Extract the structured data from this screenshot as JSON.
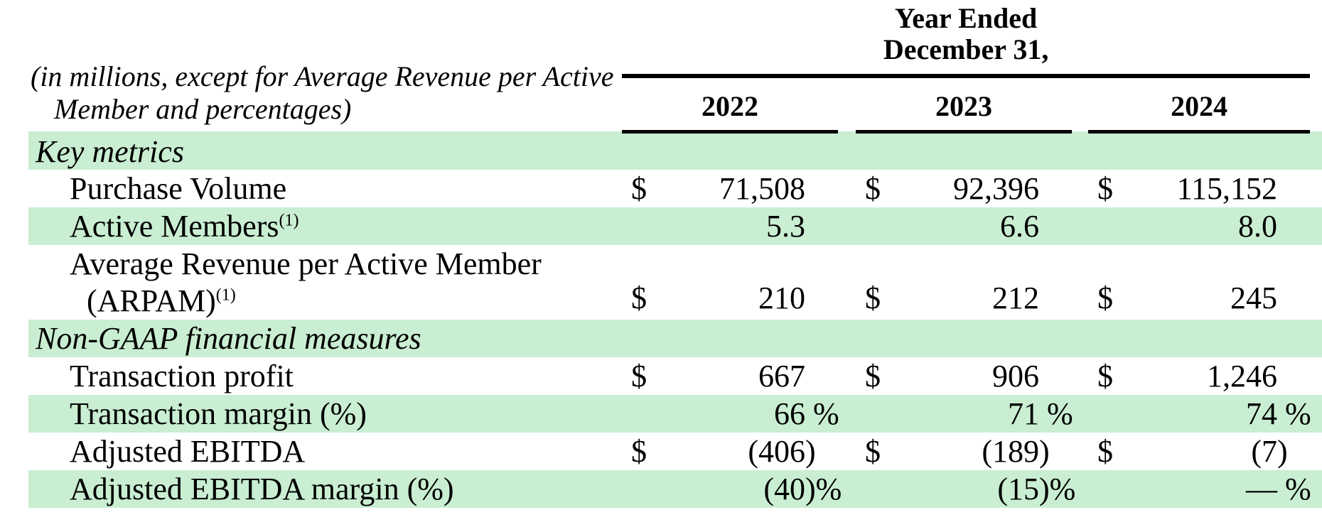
{
  "colors": {
    "row_shade_green": "#c9eed2",
    "rule_black": "#000000"
  },
  "note": "(in millions, except for Average Revenue per Active Member and percentages)",
  "header": {
    "period_line1": "Year Ended",
    "period_line2": "December 31,",
    "years": [
      "2022",
      "2023",
      "2024"
    ]
  },
  "rows": [
    {
      "type": "section",
      "label": "Key metrics"
    },
    {
      "type": "data",
      "label": "Purchase Volume",
      "sup": "",
      "values": [
        {
          "cur": "$",
          "amount": "71,508",
          "suffix": ""
        },
        {
          "cur": "$",
          "amount": "92,396",
          "suffix": ""
        },
        {
          "cur": "$",
          "amount": "115,152",
          "suffix": ""
        }
      ]
    },
    {
      "type": "data",
      "label": "Active Members",
      "sup": "(1)",
      "values": [
        {
          "cur": "",
          "amount": "5.3",
          "suffix": ""
        },
        {
          "cur": "",
          "amount": "6.6",
          "suffix": ""
        },
        {
          "cur": "",
          "amount": "8.0",
          "suffix": ""
        }
      ]
    },
    {
      "type": "data-two-line",
      "label_line1": "Average Revenue per Active Member",
      "label_line2": "(ARPAM)",
      "sup": "(1)",
      "values": [
        {
          "cur": "$",
          "amount": "210",
          "suffix": ""
        },
        {
          "cur": "$",
          "amount": "212",
          "suffix": ""
        },
        {
          "cur": "$",
          "amount": "245",
          "suffix": ""
        }
      ]
    },
    {
      "type": "section",
      "label": "Non-GAAP financial measures"
    },
    {
      "type": "data",
      "label": "Transaction profit",
      "sup": "",
      "values": [
        {
          "cur": "$",
          "amount": "667",
          "suffix": ""
        },
        {
          "cur": "$",
          "amount": "906",
          "suffix": ""
        },
        {
          "cur": "$",
          "amount": "1,246",
          "suffix": ""
        }
      ]
    },
    {
      "type": "data",
      "label": "Transaction margin (%)",
      "sup": "",
      "values": [
        {
          "cur": "",
          "amount": "66",
          "suffix": " %"
        },
        {
          "cur": "",
          "amount": "71",
          "suffix": " %"
        },
        {
          "cur": "",
          "amount": "74",
          "suffix": " %"
        }
      ]
    },
    {
      "type": "data",
      "label": "Adjusted EBITDA",
      "sup": "",
      "values": [
        {
          "cur": "$",
          "amount": "(406",
          "suffix": ")"
        },
        {
          "cur": "$",
          "amount": "(189",
          "suffix": ")"
        },
        {
          "cur": "$",
          "amount": "(7",
          "suffix": ")"
        }
      ]
    },
    {
      "type": "data",
      "label": "Adjusted EBITDA margin (%)",
      "sup": "",
      "values": [
        {
          "cur": "",
          "amount": "(40",
          "suffix": ")%"
        },
        {
          "cur": "",
          "amount": "(15",
          "suffix": ")%"
        },
        {
          "cur": "",
          "amount": "—",
          "suffix": " %"
        }
      ]
    }
  ]
}
